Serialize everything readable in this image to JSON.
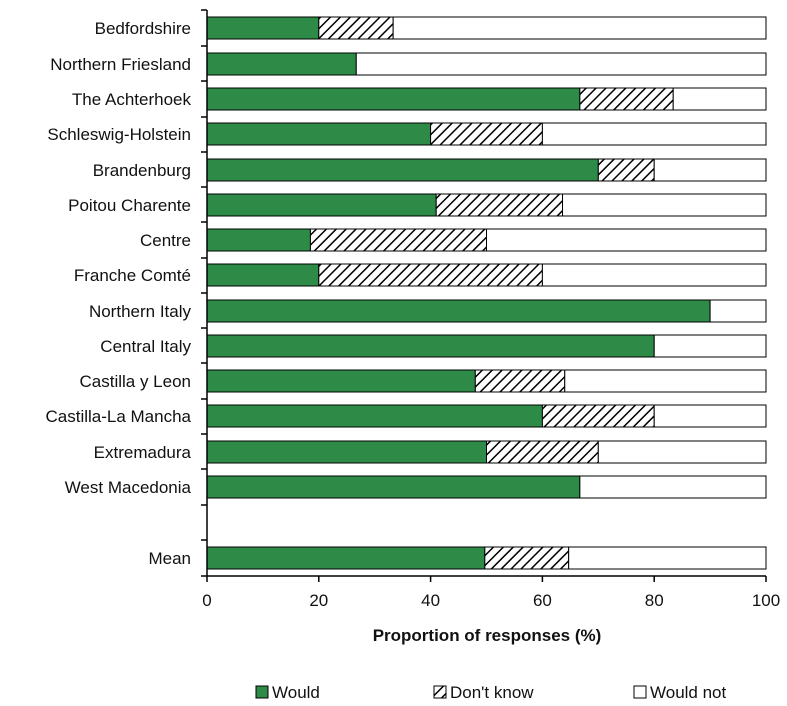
{
  "chart_data": {
    "type": "bar",
    "stacked": true,
    "orientation": "horizontal",
    "xlabel": "Proportion of responses (%)",
    "xlim": [
      0,
      100
    ],
    "xticks": [
      0,
      20,
      40,
      60,
      80,
      100
    ],
    "categories": [
      "Bedfordshire",
      "Northern Friesland",
      "The Achterhoek",
      "Schleswig-Holstein",
      "Brandenburg",
      "Poitou Charente",
      "Centre",
      "Franche Comté",
      "Northern Italy",
      "Central Italy",
      "Castilla y Leon",
      "Castilla-La Mancha",
      "Extremadura",
      "West Macedonia",
      "Mean"
    ],
    "series": [
      {
        "name": "Would",
        "values": [
          20,
          26.7,
          66.7,
          40,
          70,
          41,
          18.5,
          20,
          90,
          80,
          48,
          60,
          50,
          66.7,
          49.7
        ]
      },
      {
        "name": "Don't know",
        "values": [
          13.3,
          0,
          16.7,
          20,
          10,
          22.6,
          31.5,
          40,
          0,
          0,
          16,
          20,
          20,
          0,
          15
        ]
      },
      {
        "name": "Would not",
        "values": [
          66.7,
          73.3,
          16.6,
          40,
          20,
          36.4,
          50,
          40,
          10,
          20,
          36,
          20,
          30,
          33.3,
          35.3
        ]
      }
    ],
    "colors": {
      "Would": "#2e8b47",
      "Don't know": "hatched",
      "Would not": "#ffffff"
    },
    "legend_position": "bottom"
  }
}
